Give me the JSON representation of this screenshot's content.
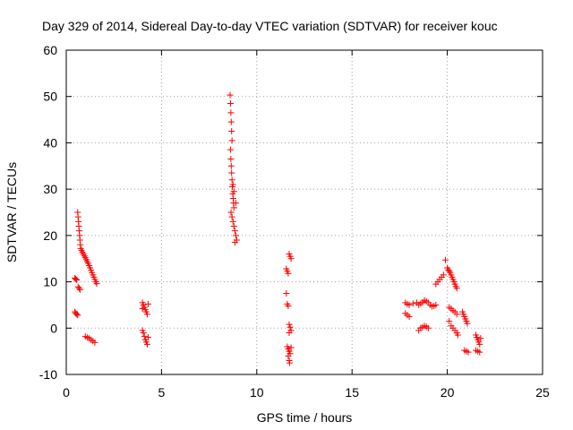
{
  "chart_data": {
    "type": "scatter",
    "title": "Day 329 of 2014, Sidereal Day-to-day VTEC variation (SDTVAR) for receiver kouc",
    "xlabel": "GPS time / hours",
    "ylabel": "SDTVAR / TECUs",
    "xlim": [
      0,
      25
    ],
    "ylim": [
      -10,
      60
    ],
    "xticks": [
      "0",
      "5",
      "10",
      "15",
      "20",
      "25"
    ],
    "yticks": [
      "-10",
      "0",
      "10",
      "20",
      "30",
      "40",
      "50",
      "60"
    ],
    "grid": true,
    "marker": "+",
    "color": "#ff0000",
    "series": [
      {
        "name": "SDTVAR",
        "points": [
          [
            0.45,
            10.8
          ],
          [
            0.5,
            10.6
          ],
          [
            0.55,
            10.4
          ],
          [
            0.62,
            8.9
          ],
          [
            0.68,
            8.6
          ],
          [
            0.72,
            8.3
          ],
          [
            0.45,
            3.5
          ],
          [
            0.5,
            3.2
          ],
          [
            0.55,
            3.0
          ],
          [
            0.6,
            2.8
          ],
          [
            0.6,
            25.0
          ],
          [
            0.62,
            24.0
          ],
          [
            0.64,
            23.0
          ],
          [
            0.66,
            22.0
          ],
          [
            0.68,
            21.0
          ],
          [
            0.7,
            20.0
          ],
          [
            0.72,
            19.0
          ],
          [
            0.74,
            18.0
          ],
          [
            0.76,
            17.2
          ],
          [
            0.8,
            16.8
          ],
          [
            0.85,
            16.4
          ],
          [
            0.9,
            16.0
          ],
          [
            0.95,
            15.6
          ],
          [
            1.0,
            15.2
          ],
          [
            1.05,
            14.8
          ],
          [
            1.1,
            14.4
          ],
          [
            1.15,
            14.0
          ],
          [
            1.2,
            13.5
          ],
          [
            1.25,
            13.0
          ],
          [
            1.3,
            12.5
          ],
          [
            1.35,
            12.0
          ],
          [
            1.4,
            11.5
          ],
          [
            1.45,
            11.0
          ],
          [
            1.5,
            10.5
          ],
          [
            1.55,
            10.0
          ],
          [
            1.6,
            9.6
          ],
          [
            1.0,
            -1.8
          ],
          [
            1.1,
            -2.0
          ],
          [
            1.2,
            -2.2
          ],
          [
            1.3,
            -2.5
          ],
          [
            1.4,
            -2.8
          ],
          [
            1.5,
            -3.1
          ],
          [
            4.0,
            5.5
          ],
          [
            4.05,
            5.0
          ],
          [
            4.1,
            4.5
          ],
          [
            4.15,
            4.0
          ],
          [
            4.2,
            3.5
          ],
          [
            4.25,
            3.0
          ],
          [
            4.0,
            4.2
          ],
          [
            4.3,
            5.2
          ],
          [
            4.0,
            -0.5
          ],
          [
            4.05,
            -1.0
          ],
          [
            4.1,
            -1.8
          ],
          [
            4.15,
            -2.5
          ],
          [
            4.2,
            -3.0
          ],
          [
            4.25,
            -3.5
          ],
          [
            4.3,
            -2.0
          ],
          [
            8.6,
            50.3
          ],
          [
            8.62,
            48.5
          ],
          [
            8.64,
            46.5
          ],
          [
            8.66,
            44.5
          ],
          [
            8.68,
            42.5
          ],
          [
            8.7,
            40.5
          ],
          [
            8.62,
            38.5
          ],
          [
            8.64,
            36.5
          ],
          [
            8.66,
            35.0
          ],
          [
            8.68,
            33.5
          ],
          [
            8.7,
            32.0
          ],
          [
            8.72,
            30.5
          ],
          [
            8.74,
            29.0
          ],
          [
            8.76,
            28.0
          ],
          [
            8.78,
            27.0
          ],
          [
            8.8,
            26.0
          ],
          [
            8.65,
            25.0
          ],
          [
            8.7,
            24.0
          ],
          [
            8.75,
            23.0
          ],
          [
            8.8,
            22.0
          ],
          [
            8.85,
            21.0
          ],
          [
            8.9,
            20.0
          ],
          [
            8.95,
            19.0
          ],
          [
            8.85,
            18.5
          ],
          [
            8.9,
            27.0
          ],
          [
            8.75,
            31.0
          ],
          [
            8.8,
            29.5
          ],
          [
            11.55,
            12.8
          ],
          [
            11.6,
            12.3
          ],
          [
            11.65,
            11.8
          ],
          [
            11.55,
            7.5
          ],
          [
            11.6,
            5.2
          ],
          [
            11.65,
            4.8
          ],
          [
            11.7,
            16.0
          ],
          [
            11.75,
            15.5
          ],
          [
            11.8,
            15.0
          ],
          [
            11.7,
            0.8
          ],
          [
            11.75,
            0.2
          ],
          [
            11.8,
            -0.5
          ],
          [
            11.7,
            -1.0
          ],
          [
            11.6,
            -4.0
          ],
          [
            11.65,
            -4.5
          ],
          [
            11.7,
            -5.0
          ],
          [
            11.75,
            -5.5
          ],
          [
            11.65,
            -6.0
          ],
          [
            11.7,
            -7.0
          ],
          [
            11.72,
            -7.5
          ],
          [
            11.8,
            -4.2
          ],
          [
            17.8,
            5.5
          ],
          [
            17.9,
            5.2
          ],
          [
            18.0,
            5.0
          ],
          [
            18.2,
            5.3
          ],
          [
            18.4,
            5.5
          ],
          [
            17.8,
            3.2
          ],
          [
            17.9,
            2.8
          ],
          [
            18.0,
            2.5
          ],
          [
            18.5,
            5.0
          ],
          [
            18.6,
            5.3
          ],
          [
            18.7,
            5.6
          ],
          [
            18.8,
            6.0
          ],
          [
            18.9,
            5.8
          ],
          [
            19.0,
            5.5
          ],
          [
            19.1,
            5.0
          ],
          [
            19.2,
            4.7
          ],
          [
            19.3,
            4.8
          ],
          [
            19.4,
            5.0
          ],
          [
            18.5,
            -0.5
          ],
          [
            18.6,
            0.0
          ],
          [
            18.7,
            0.2
          ],
          [
            18.8,
            0.5
          ],
          [
            18.9,
            0.3
          ],
          [
            19.0,
            0.0
          ],
          [
            19.4,
            9.5
          ],
          [
            19.5,
            10.0
          ],
          [
            19.6,
            10.5
          ],
          [
            19.7,
            11.0
          ],
          [
            19.8,
            11.5
          ],
          [
            19.9,
            14.7
          ],
          [
            20.0,
            13.0
          ],
          [
            20.05,
            12.6
          ],
          [
            20.1,
            12.3
          ],
          [
            20.15,
            12.0
          ],
          [
            20.2,
            11.5
          ],
          [
            20.25,
            11.0
          ],
          [
            20.3,
            10.5
          ],
          [
            20.35,
            10.0
          ],
          [
            20.4,
            9.5
          ],
          [
            20.45,
            9.0
          ],
          [
            20.5,
            8.6
          ],
          [
            20.1,
            4.5
          ],
          [
            20.2,
            4.2
          ],
          [
            20.3,
            3.8
          ],
          [
            20.4,
            3.5
          ],
          [
            20.5,
            3.0
          ],
          [
            20.1,
            1.5
          ],
          [
            20.2,
            0.5
          ],
          [
            20.3,
            0.0
          ],
          [
            20.4,
            -0.5
          ],
          [
            20.5,
            -1.0
          ],
          [
            20.55,
            -1.5
          ],
          [
            20.8,
            3.5
          ],
          [
            20.85,
            3.0
          ],
          [
            20.9,
            2.5
          ],
          [
            20.95,
            2.0
          ],
          [
            21.0,
            1.5
          ],
          [
            21.05,
            1.0
          ],
          [
            20.9,
            -4.8
          ],
          [
            21.0,
            -5.0
          ],
          [
            21.1,
            -5.2
          ],
          [
            21.5,
            -1.5
          ],
          [
            21.55,
            -2.0
          ],
          [
            21.6,
            -2.5
          ],
          [
            21.65,
            -3.0
          ],
          [
            21.7,
            -3.5
          ],
          [
            21.75,
            -2.2
          ],
          [
            21.5,
            -4.8
          ],
          [
            21.6,
            -5.0
          ],
          [
            21.7,
            -5.2
          ]
        ]
      }
    ]
  }
}
